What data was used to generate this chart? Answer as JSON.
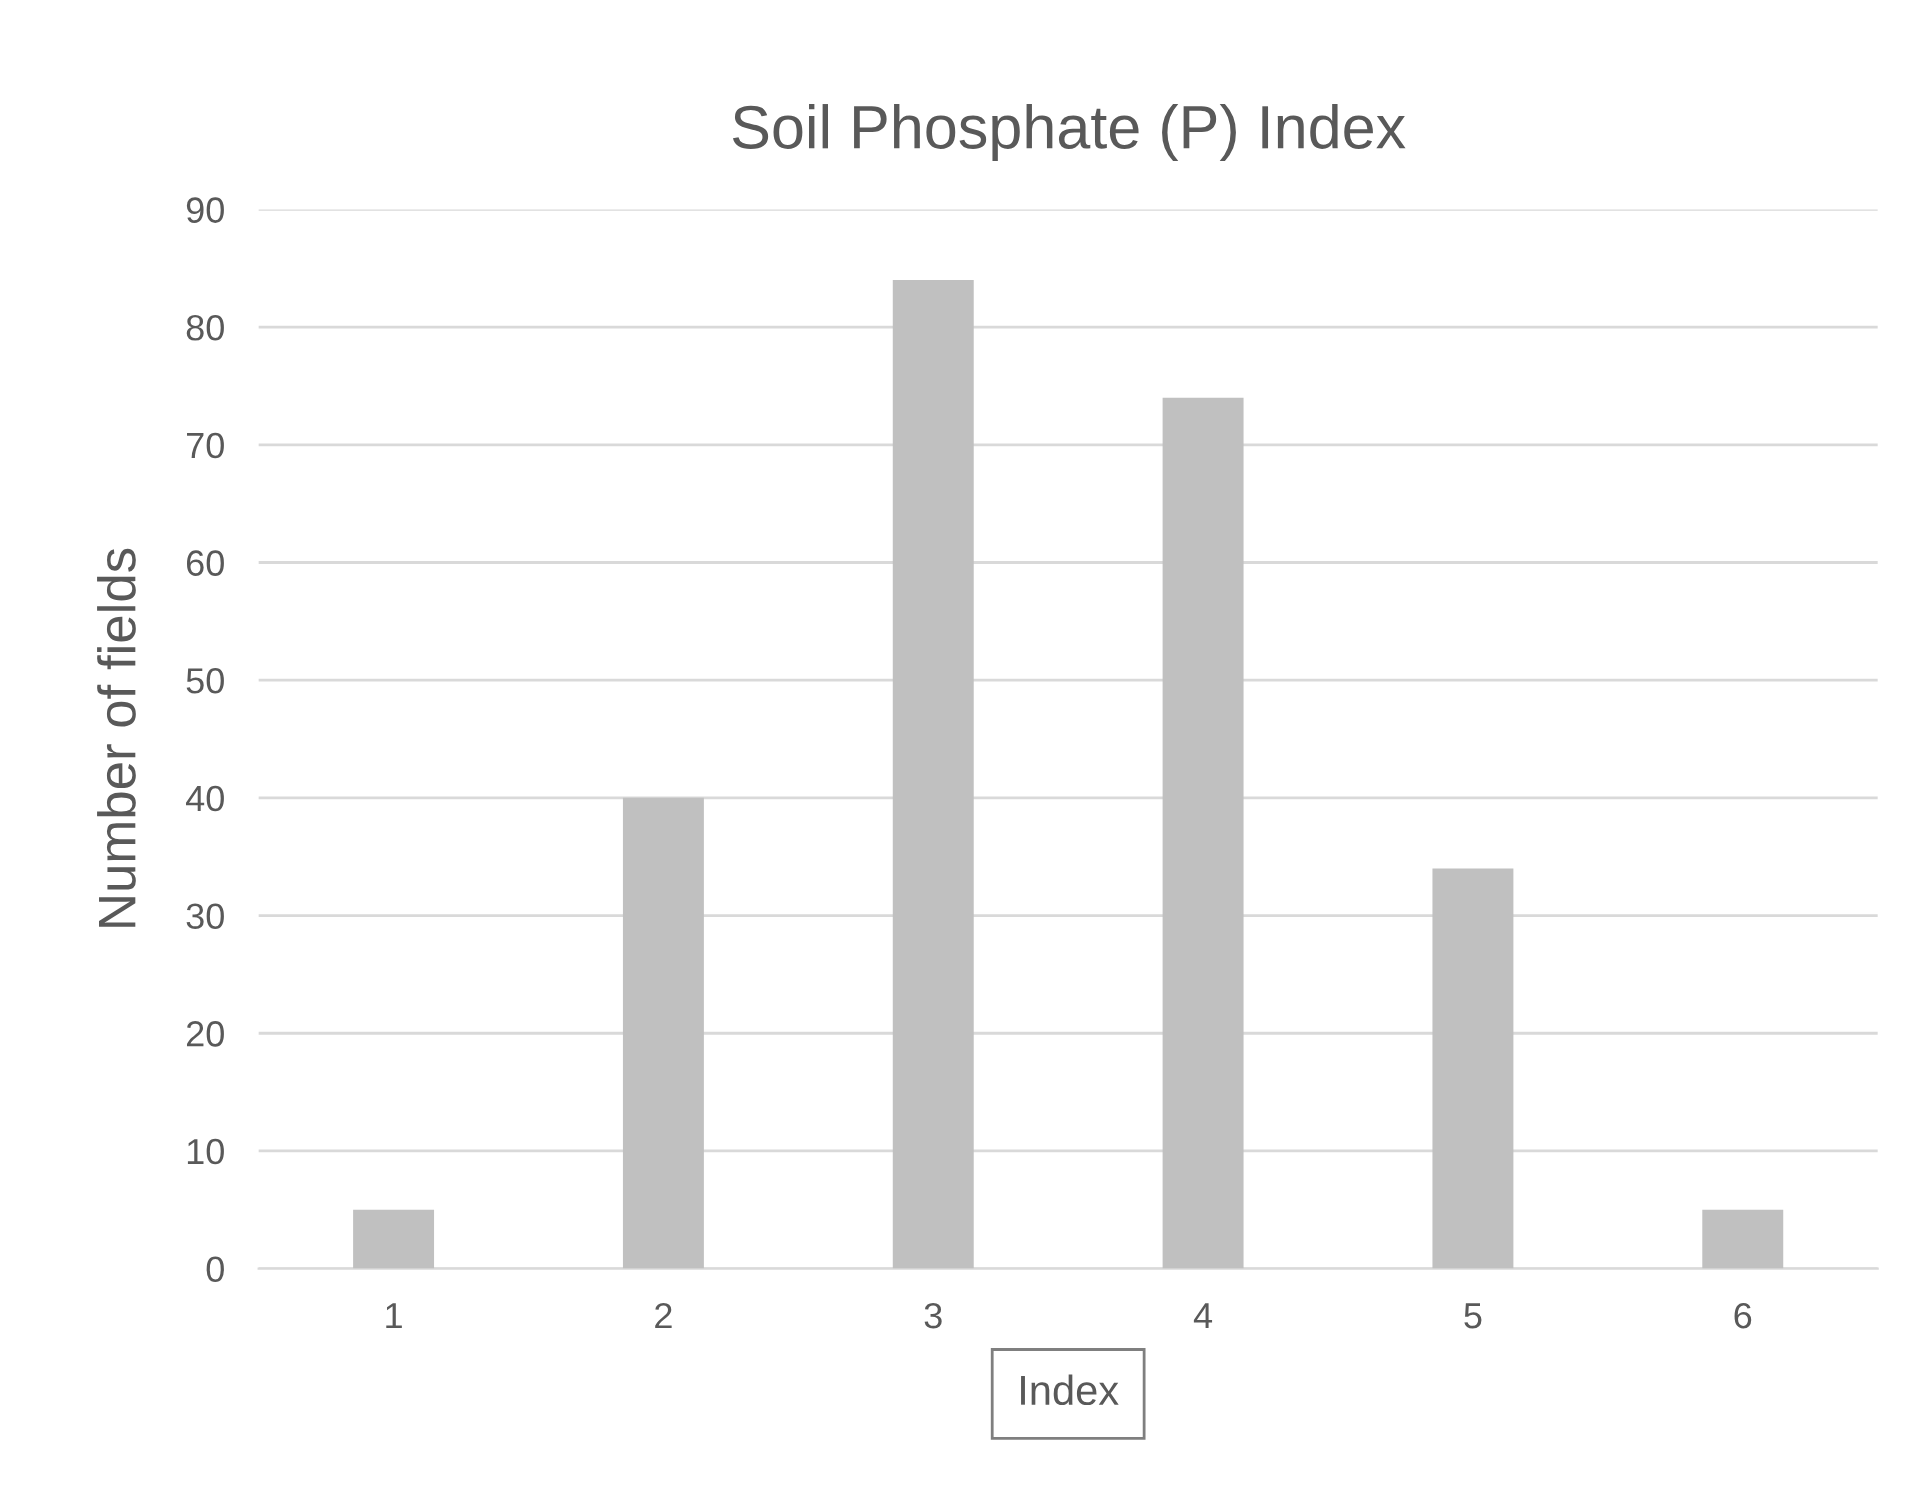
{
  "chart_data": {
    "type": "bar",
    "title": "Soil Phosphate (P) Index",
    "xlabel": "Index",
    "ylabel": "Number of fields",
    "categories": [
      "1",
      "2",
      "3",
      "4",
      "5",
      "6"
    ],
    "values": [
      5,
      40,
      84,
      74,
      34,
      5
    ],
    "color": "#c0c0c0",
    "ylim": [
      0,
      90
    ],
    "yticks": [
      0,
      10,
      20,
      30,
      40,
      50,
      60,
      70,
      80,
      90
    ],
    "grid": "y"
  }
}
